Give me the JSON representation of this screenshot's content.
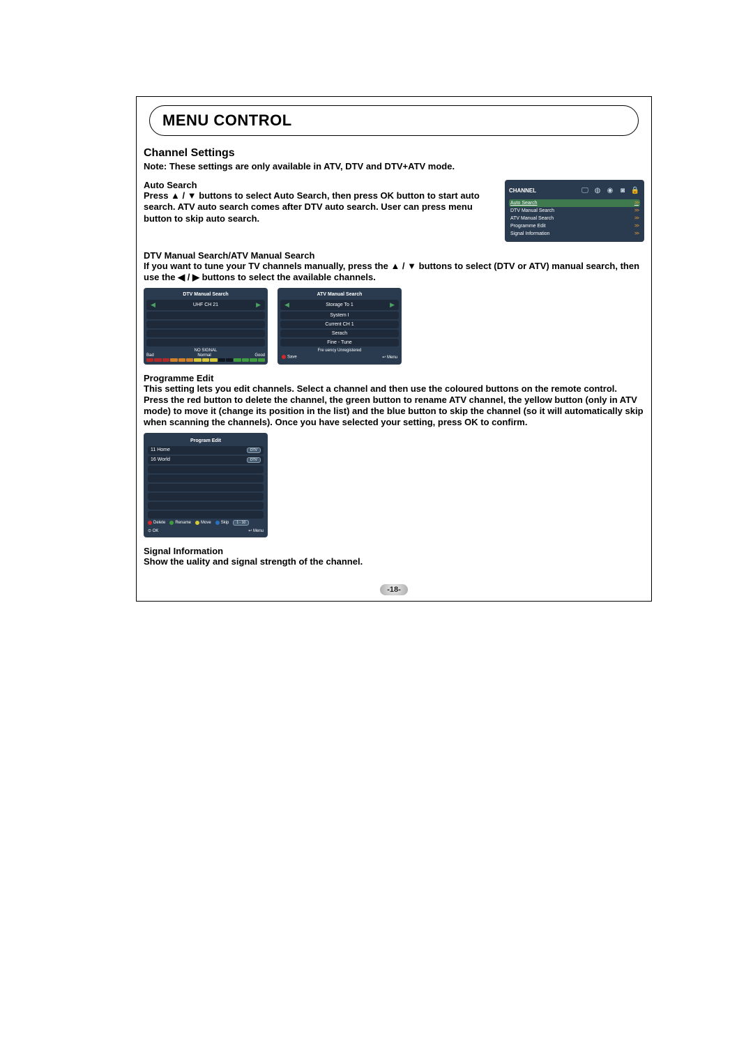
{
  "page": {
    "title": "MENU CONTROL",
    "number": "-18-"
  },
  "channel_settings": {
    "heading": "Channel Settings",
    "note": "Note: These settings are only available in ATV, DTV and DTV+ATV mode."
  },
  "auto_search": {
    "heading": "Auto Search",
    "text_pre": "Press ",
    "text_mid": "buttons to select Auto Search, then press OK button to start auto search. ATV auto search comes after DTV auto search. User can press menu button to skip auto search."
  },
  "channel_menu": {
    "title": "CHANNEL",
    "items": [
      {
        "label": "Auto Search",
        "selected": true
      },
      {
        "label": "DTV Manual Search",
        "selected": false
      },
      {
        "label": "ATV Manual Search",
        "selected": false
      },
      {
        "label": "Programme Edit",
        "selected": false
      },
      {
        "label": "Signal Information",
        "selected": false
      }
    ]
  },
  "manual_search": {
    "heading": "DTV Manual Search/ATV Manual Search",
    "text_a": "If you want to tune your TV channels manually, press the ",
    "text_b": " buttons to select (DTV or ATV) manual search, then use the ",
    "text_c": " buttons to select the available channels."
  },
  "dtv_panel": {
    "title": "DTV Manual Search",
    "channel": "UHF CH 21",
    "signal_label": "NO SIGNAL",
    "bad": "Bad",
    "normal": "Normal",
    "good": "Good"
  },
  "atv_panel": {
    "title": "ATV Manual Search",
    "rows": [
      "Storage To 1",
      "System I",
      "Current CH 1",
      "Serach",
      "Fine - Tune"
    ],
    "status": "Fre uency Unregistered",
    "save": "Save",
    "menu": "Menu"
  },
  "programme_edit": {
    "heading": "Programme Edit",
    "text": "This setting lets you edit channels. Select a channel and then use the coloured buttons on the remote control. Press the red button to delete the channel, the green button to rename ATV channel, the yellow button (only in ATV mode) to move it (change its position in the list) and the blue button to skip the channel (so it will automatically skip when scanning the channels). Once you have selected your setting, press OK to confirm."
  },
  "prog_panel": {
    "title": "Program Edit",
    "rows": [
      {
        "label": "11 Home",
        "badge": "DTV"
      },
      {
        "label": "16 World",
        "badge": "DTV"
      }
    ],
    "actions": {
      "delete": "Delete",
      "rename": "Rename",
      "move": "Move",
      "skip": "Skip",
      "num_range": "1 - 10"
    },
    "ok": "OK",
    "menu": "Menu"
  },
  "signal_info": {
    "heading": "Signal Information",
    "text": "Show the uality and signal strength of the channel."
  }
}
